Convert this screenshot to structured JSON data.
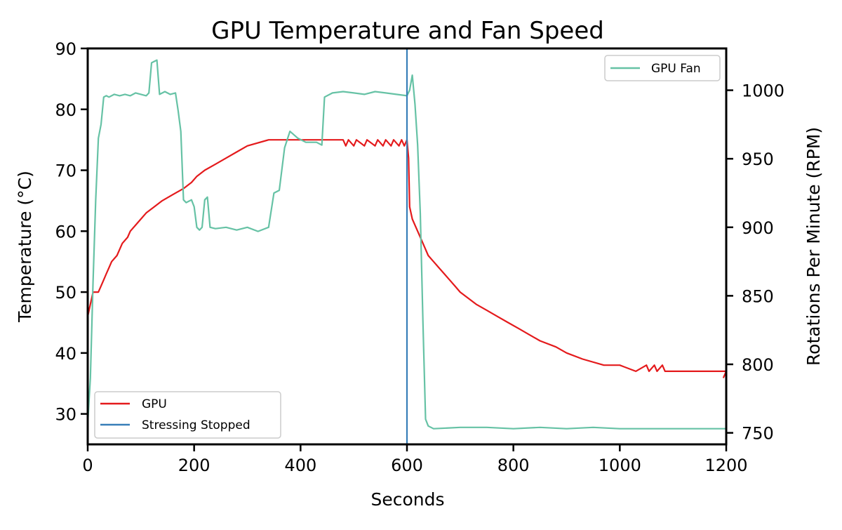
{
  "chart_data": {
    "type": "line",
    "title": "GPU Temperature and Fan Speed",
    "xlabel": "Seconds",
    "ylabel_left": "Temperature (°C)",
    "ylabel_right": "Rotations Per Minute (RPM)",
    "xlim": [
      0,
      1200
    ],
    "ylim_left": [
      25,
      90
    ],
    "ylim_right": [
      741.6,
      1030.5
    ],
    "x_ticks": [
      0,
      200,
      400,
      600,
      800,
      1000,
      1200
    ],
    "y_left_ticks": [
      30,
      40,
      50,
      60,
      70,
      80,
      90
    ],
    "y_right_ticks": [
      750,
      800,
      850,
      900,
      950,
      1000
    ],
    "grid": false,
    "legend_left": {
      "placement": "lower-left",
      "entries": [
        "GPU",
        "Stressing Stopped"
      ]
    },
    "legend_right": {
      "placement": "upper-right",
      "entries": [
        "GPU Fan"
      ]
    },
    "colors": {
      "gpu": "#e41a1c",
      "stress": "#377eb8",
      "fan": "#66c2a5"
    },
    "vertical_line": {
      "name": "Stressing Stopped",
      "x": 600
    },
    "series": [
      {
        "name": "GPU",
        "axis": "left",
        "color": "#e41a1c",
        "points": [
          [
            0,
            46
          ],
          [
            5,
            48
          ],
          [
            10,
            50
          ],
          [
            20,
            50
          ],
          [
            25,
            51
          ],
          [
            30,
            52
          ],
          [
            35,
            53
          ],
          [
            40,
            54
          ],
          [
            45,
            55
          ],
          [
            55,
            56
          ],
          [
            60,
            57
          ],
          [
            65,
            58
          ],
          [
            75,
            59
          ],
          [
            80,
            60
          ],
          [
            90,
            61
          ],
          [
            100,
            62
          ],
          [
            110,
            63
          ],
          [
            125,
            64
          ],
          [
            140,
            65
          ],
          [
            160,
            66
          ],
          [
            180,
            67
          ],
          [
            195,
            68
          ],
          [
            205,
            69
          ],
          [
            220,
            70
          ],
          [
            240,
            71
          ],
          [
            260,
            72
          ],
          [
            280,
            73
          ],
          [
            300,
            74
          ],
          [
            340,
            75
          ],
          [
            360,
            75
          ],
          [
            480,
            75
          ],
          [
            485,
            74
          ],
          [
            490,
            75
          ],
          [
            500,
            74
          ],
          [
            505,
            75
          ],
          [
            520,
            74
          ],
          [
            525,
            75
          ],
          [
            540,
            74
          ],
          [
            545,
            75
          ],
          [
            555,
            74
          ],
          [
            560,
            75
          ],
          [
            570,
            74
          ],
          [
            575,
            75
          ],
          [
            585,
            74
          ],
          [
            590,
            75
          ],
          [
            595,
            74
          ],
          [
            600,
            75
          ],
          [
            603,
            72
          ],
          [
            605,
            64
          ],
          [
            610,
            62
          ],
          [
            620,
            60
          ],
          [
            630,
            58
          ],
          [
            640,
            56
          ],
          [
            650,
            55
          ],
          [
            660,
            54
          ],
          [
            670,
            53
          ],
          [
            680,
            52
          ],
          [
            690,
            51
          ],
          [
            700,
            50
          ],
          [
            715,
            49
          ],
          [
            730,
            48
          ],
          [
            750,
            47
          ],
          [
            770,
            46
          ],
          [
            790,
            45
          ],
          [
            810,
            44
          ],
          [
            830,
            43
          ],
          [
            850,
            42
          ],
          [
            880,
            41
          ],
          [
            900,
            40
          ],
          [
            930,
            39
          ],
          [
            970,
            38
          ],
          [
            1000,
            38
          ],
          [
            1030,
            37
          ],
          [
            1050,
            38
          ],
          [
            1055,
            37
          ],
          [
            1065,
            38
          ],
          [
            1070,
            37
          ],
          [
            1080,
            38
          ],
          [
            1085,
            37
          ],
          [
            1200,
            37
          ],
          [
            1195,
            36
          ],
          [
            1200,
            37
          ]
        ]
      },
      {
        "name": "GPU Fan",
        "axis": "right",
        "color": "#66c2a5",
        "points": [
          [
            0,
            757
          ],
          [
            5,
            790
          ],
          [
            10,
            860
          ],
          [
            15,
            920
          ],
          [
            20,
            965
          ],
          [
            25,
            975
          ],
          [
            30,
            995
          ],
          [
            35,
            996
          ],
          [
            40,
            995
          ],
          [
            50,
            997
          ],
          [
            60,
            996
          ],
          [
            70,
            997
          ],
          [
            80,
            996
          ],
          [
            90,
            998
          ],
          [
            100,
            997
          ],
          [
            110,
            996
          ],
          [
            115,
            998
          ],
          [
            120,
            1020
          ],
          [
            125,
            1021
          ],
          [
            130,
            1022
          ],
          [
            135,
            997
          ],
          [
            145,
            999
          ],
          [
            155,
            997
          ],
          [
            165,
            998
          ],
          [
            170,
            985
          ],
          [
            175,
            970
          ],
          [
            180,
            920
          ],
          [
            185,
            918
          ],
          [
            195,
            920
          ],
          [
            200,
            915
          ],
          [
            205,
            900
          ],
          [
            210,
            898
          ],
          [
            215,
            900
          ],
          [
            220,
            920
          ],
          [
            225,
            922
          ],
          [
            230,
            900
          ],
          [
            240,
            899
          ],
          [
            260,
            900
          ],
          [
            280,
            898
          ],
          [
            300,
            900
          ],
          [
            320,
            897
          ],
          [
            340,
            900
          ],
          [
            350,
            925
          ],
          [
            360,
            927
          ],
          [
            370,
            958
          ],
          [
            380,
            970
          ],
          [
            395,
            965
          ],
          [
            410,
            962
          ],
          [
            430,
            962
          ],
          [
            440,
            960
          ],
          [
            445,
            995
          ],
          [
            460,
            998
          ],
          [
            480,
            999
          ],
          [
            500,
            998
          ],
          [
            520,
            997
          ],
          [
            540,
            999
          ],
          [
            560,
            998
          ],
          [
            580,
            997
          ],
          [
            600,
            996
          ],
          [
            605,
            1000
          ],
          [
            610,
            1011
          ],
          [
            615,
            990
          ],
          [
            620,
            960
          ],
          [
            625,
            910
          ],
          [
            630,
            830
          ],
          [
            635,
            760
          ],
          [
            640,
            755
          ],
          [
            650,
            753
          ],
          [
            700,
            754
          ],
          [
            750,
            754
          ],
          [
            800,
            753
          ],
          [
            850,
            754
          ],
          [
            900,
            753
          ],
          [
            950,
            754
          ],
          [
            1000,
            753
          ],
          [
            1050,
            753
          ],
          [
            1100,
            753
          ],
          [
            1150,
            753
          ],
          [
            1200,
            753
          ]
        ]
      }
    ]
  }
}
